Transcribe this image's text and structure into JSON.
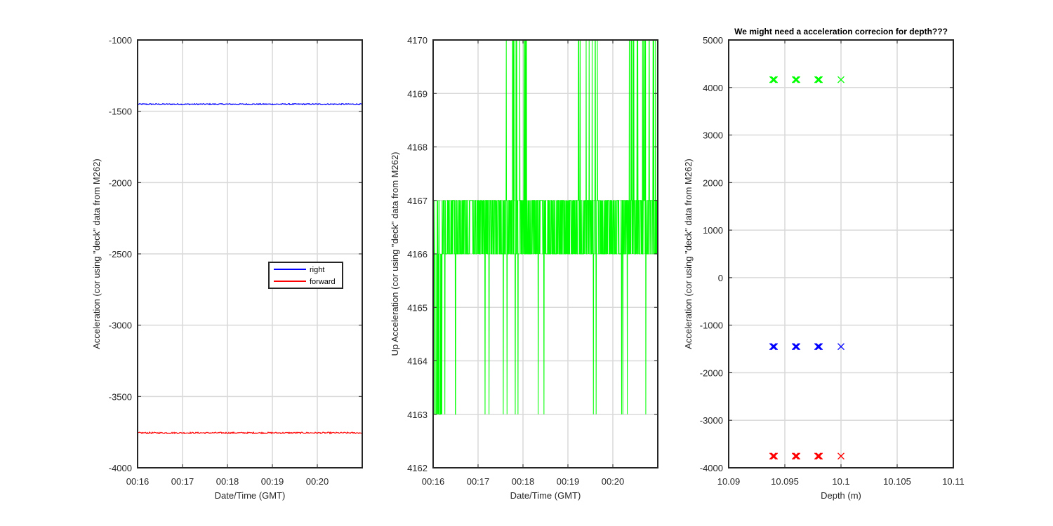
{
  "chart_data": [
    {
      "type": "line",
      "title": "",
      "xlabel": "Date/Time (GMT)",
      "ylabel": "Acceleration (cor using \"deck\" data from M262)",
      "x_ticks": [
        "00:16",
        "00:17",
        "00:18",
        "00:19",
        "00:20"
      ],
      "xlim": [
        "00:16:00",
        "00:21:00"
      ],
      "ylim": [
        -4000,
        -1000
      ],
      "y_ticks": [
        -4000,
        -3500,
        -3000,
        -2500,
        -2000,
        -1500,
        -1000
      ],
      "grid": true,
      "legend_position": "center-right",
      "series": [
        {
          "name": "right",
          "color": "#0000ff",
          "level": -1450,
          "noise": 4
        },
        {
          "name": "forward",
          "color": "#ff0000",
          "level": -3755,
          "noise": 5
        }
      ]
    },
    {
      "type": "line",
      "title": "",
      "xlabel": "Date/Time (GMT)",
      "ylabel": "Up Acceleration (cor using \"deck\" data from M262)",
      "x_ticks": [
        "00:16",
        "00:17",
        "00:18",
        "00:19",
        "00:20"
      ],
      "xlim": [
        "00:16:00",
        "00:21:00"
      ],
      "ylim": [
        4162,
        4170
      ],
      "y_ticks": [
        4162,
        4163,
        4164,
        4165,
        4166,
        4167,
        4168,
        4169,
        4170
      ],
      "grid": true,
      "series": [
        {
          "name": "",
          "color": "#00ff00",
          "value_range": [
            4163,
            4170
          ],
          "dominant_values": [
            4166,
            4167
          ]
        }
      ]
    },
    {
      "type": "scatter",
      "title": "We might need a acceleration correcion for depth???",
      "xlabel": "Depth (m)",
      "ylabel": "Acceleration (cor using \"deck\" data from M262)",
      "xlim": [
        10.09,
        10.11
      ],
      "ylim": [
        -4000,
        5000
      ],
      "x_ticks": [
        "10.09",
        "10.095",
        "10.1",
        "10.105",
        "10.11"
      ],
      "y_ticks": [
        -4000,
        -3000,
        -2000,
        -1000,
        0,
        1000,
        2000,
        3000,
        4000,
        5000
      ],
      "grid": true,
      "marker": "x",
      "x": [
        10.094,
        10.096,
        10.098,
        10.1
      ],
      "series": [
        {
          "name": "",
          "color": "#00ff00",
          "values": [
            4166,
            4166,
            4166,
            4166
          ]
        },
        {
          "name": "",
          "color": "#0000ff",
          "values": [
            -1450,
            -1450,
            -1450,
            -1450
          ]
        },
        {
          "name": "",
          "color": "#ff0000",
          "values": [
            -3755,
            -3755,
            -3755,
            -3755
          ]
        }
      ]
    }
  ]
}
